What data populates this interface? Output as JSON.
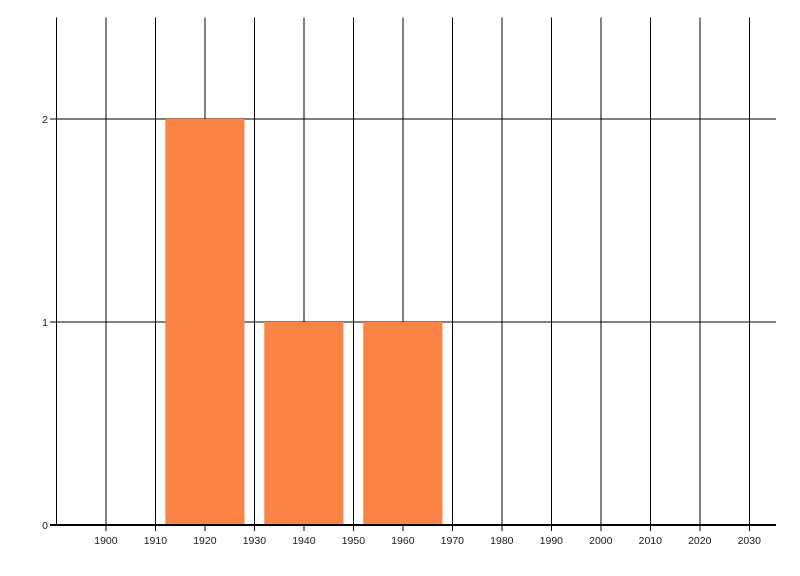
{
  "chart_data": {
    "type": "bar",
    "title": "",
    "xlabel": "",
    "ylabel": "",
    "x": [
      1920,
      1940,
      1960
    ],
    "values": [
      2,
      1,
      1
    ],
    "bar_width_years": 16,
    "bar_color": "#fb8345",
    "gridline_color": "#000000",
    "axis_color": "#000000",
    "label_color": "#1a1a1a",
    "background_color": "#ffffff",
    "xlim": [
      1888.7,
      2035.4
    ],
    "ylim": [
      0,
      2.5
    ],
    "x_gridlines": [
      1890,
      1900,
      1910,
      1920,
      1930,
      1940,
      1950,
      1960,
      1970,
      1980,
      1990,
      2000,
      2010,
      2020,
      2030
    ],
    "x_ticks": [
      1900,
      1910,
      1920,
      1930,
      1940,
      1950,
      1960,
      1970,
      1980,
      1990,
      2000,
      2010,
      2020,
      2030
    ],
    "x_tick_labels": [
      "1900",
      "1910",
      "1920",
      "1930",
      "1940",
      "1950",
      "1960",
      "1970",
      "1980",
      "1990",
      "2000",
      "2010",
      "2020",
      "2030"
    ],
    "y_ticks": [
      0,
      1,
      2
    ],
    "y_tick_labels": [
      "0",
      "1",
      "2"
    ],
    "grid": true,
    "legend": "none"
  }
}
